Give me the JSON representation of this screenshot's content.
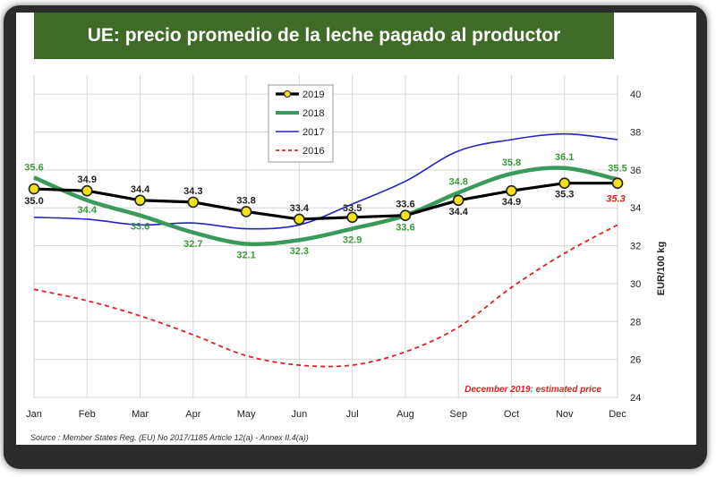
{
  "title": "UE: precio promedio de la leche pagado al productor",
  "source": "Source : Member States Reg. (EU) No 2017/1185 Article 12(a) - Annex II.4(a))",
  "note": "December 2019: estimated price",
  "chart_data": {
    "type": "line",
    "x": [
      "Jan",
      "Feb",
      "Mar",
      "Apr",
      "May",
      "Jun",
      "Jul",
      "Aug",
      "Sep",
      "Oct",
      "Nov",
      "Dec"
    ],
    "ylabel": "EUR/100 kg",
    "ylim": [
      24,
      41
    ],
    "yticks": [
      24,
      26,
      28,
      30,
      32,
      34,
      36,
      38,
      40
    ],
    "grid": true,
    "legend": "top-center",
    "series": [
      {
        "name": "2019",
        "color": "#000000",
        "values": [
          35.0,
          34.9,
          34.4,
          34.3,
          33.8,
          33.4,
          33.5,
          33.6,
          34.4,
          34.9,
          35.3,
          35.3
        ]
      },
      {
        "name": "2018",
        "color": "#3a9a5b",
        "values": [
          35.6,
          34.4,
          33.6,
          32.7,
          32.1,
          32.3,
          32.9,
          33.6,
          34.8,
          35.8,
          36.1,
          35.5
        ]
      },
      {
        "name": "2017",
        "color": "#2222cc",
        "values": [
          33.5,
          33.4,
          33.1,
          33.2,
          32.9,
          33.1,
          34.2,
          35.4,
          37.0,
          37.6,
          37.9,
          37.6
        ]
      },
      {
        "name": "2016",
        "color": "#e02020",
        "values": [
          29.7,
          29.1,
          28.3,
          27.3,
          26.2,
          25.7,
          25.7,
          26.4,
          27.7,
          29.8,
          31.6,
          33.1
        ]
      }
    ],
    "labels_2019": [
      "35.0",
      "34.9",
      "34.4",
      "34.3",
      "33.8",
      "33.4",
      "33.5",
      "33.6",
      "34.4",
      "34.9",
      "35.3",
      "35.3"
    ],
    "labels_2018": [
      "35.6",
      "34.4",
      "33.6",
      "32.7",
      "32.1",
      "32.3",
      "32.9",
      "33.6",
      "34.8",
      "35.8",
      "36.1",
      "35.5"
    ]
  }
}
